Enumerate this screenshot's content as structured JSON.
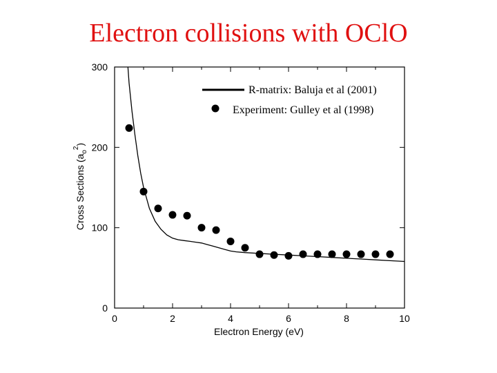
{
  "title": "Electron collisions with OClO",
  "colors": {
    "title": "#e01010",
    "axis": "#000000",
    "series": "#000000"
  },
  "chart_data": {
    "type": "scatter",
    "title": "Electron collisions with OClO",
    "xlabel": "Electron Energy (eV)",
    "ylabel": "Cross Sections (a0^2)",
    "ylabel_parts": {
      "main": "Cross Sections (a",
      "sub": "o",
      "sup": "2",
      "close": ")"
    },
    "xlim": [
      0,
      10
    ],
    "ylim": [
      0,
      300
    ],
    "xticks": [
      "0",
      "2",
      "4",
      "6",
      "8",
      "10"
    ],
    "yticks": [
      "0",
      "100",
      "200",
      "300"
    ],
    "grid": false,
    "legend_position": "top-right",
    "series": [
      {
        "name": "R-matrix: Baluja et al (2001)",
        "style": "line",
        "x": [
          0.45,
          0.5,
          0.6,
          0.7,
          0.8,
          0.9,
          1.0,
          1.2,
          1.4,
          1.6,
          1.8,
          2.0,
          2.2,
          2.4,
          2.6,
          2.8,
          3.0,
          3.2,
          3.4,
          3.6,
          3.8,
          4.0,
          4.2,
          4.5,
          5.0,
          5.5,
          6.0,
          6.5,
          7.0,
          7.5,
          8.0,
          8.5,
          9.0,
          9.5,
          10.0
        ],
        "y": [
          305,
          280,
          245,
          216,
          190,
          168,
          150,
          124,
          108,
          98,
          91,
          87,
          85,
          84,
          83,
          82,
          81,
          79,
          77,
          75,
          73,
          71,
          70,
          69,
          68,
          67,
          66,
          65,
          64,
          63,
          62,
          61,
          60,
          59,
          58
        ]
      },
      {
        "name": "Experiment: Gulley et al (1998)",
        "style": "markers",
        "x": [
          0.5,
          1.0,
          1.5,
          2.0,
          2.5,
          3.0,
          3.5,
          4.0,
          4.5,
          5.0,
          5.5,
          6.0,
          6.5,
          7.0,
          7.5,
          8.0,
          8.5,
          9.0,
          9.5
        ],
        "y": [
          224,
          145,
          124,
          116,
          115,
          100,
          97,
          83,
          75,
          67,
          66,
          65,
          67,
          67,
          67,
          67,
          67,
          67,
          67
        ]
      }
    ]
  }
}
